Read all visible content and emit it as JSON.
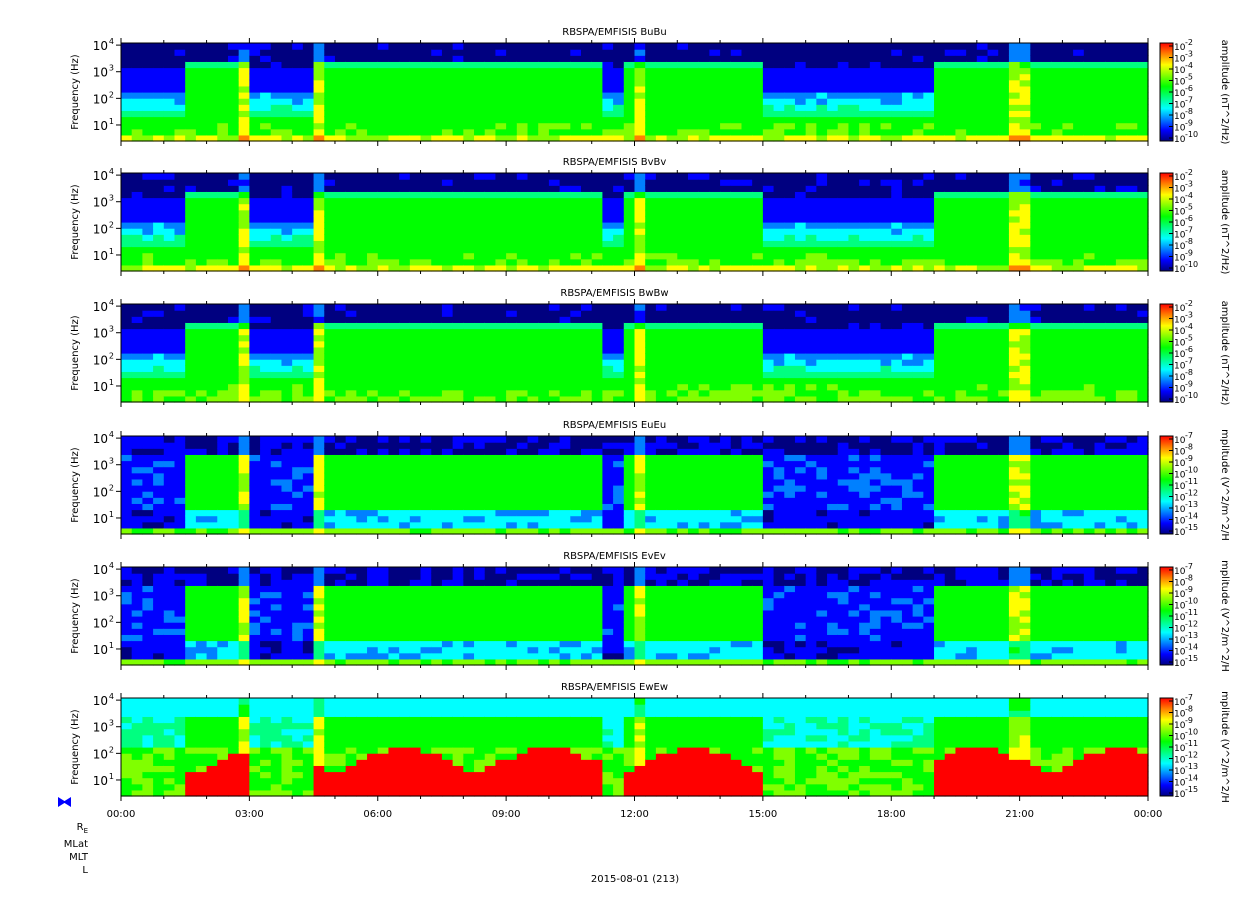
{
  "chart_data": {
    "type": "heatmap",
    "panel_count": 6,
    "x": {
      "ticks": [
        "00:00",
        "03:00",
        "06:00",
        "09:00",
        "12:00",
        "15:00",
        "18:00",
        "21:00",
        "00:00"
      ],
      "range_hours": [
        0,
        24
      ],
      "minor_step_hours": 1
    },
    "footer": "2015-08-01 (213)",
    "ephemeris_labels": [
      "R",
      "MLat",
      "MLT",
      "L"
    ],
    "ephemeris_subscript": "E",
    "panels": [
      {
        "title": "RBSPA/EMFISIS  BuBu",
        "ylabel": "Frequency (Hz)",
        "yscale": "log",
        "ylim": [
          2.5,
          12000
        ],
        "yticks": [
          {
            "base": "10",
            "exp": "4"
          },
          {
            "base": "10",
            "exp": "3"
          },
          {
            "base": "10",
            "exp": "2"
          },
          {
            "base": "10",
            "exp": "1"
          }
        ],
        "zlabel": "amplitude (nT^2/Hz)",
        "zticks": [
          "-2",
          "-3",
          "-4",
          "-5",
          "-6",
          "-7",
          "-8",
          "-9",
          "-10"
        ],
        "zrange_exp": [
          -10,
          -2
        ],
        "kind": "B"
      },
      {
        "title": "RBSPA/EMFISIS  BvBv",
        "ylabel": "Frequency (Hz)",
        "yscale": "log",
        "ylim": [
          2.5,
          12000
        ],
        "yticks": [
          {
            "base": "10",
            "exp": "4"
          },
          {
            "base": "10",
            "exp": "3"
          },
          {
            "base": "10",
            "exp": "2"
          },
          {
            "base": "10",
            "exp": "1"
          }
        ],
        "zlabel": "amplitude (nT^2/Hz)",
        "zticks": [
          "-2",
          "-3",
          "-4",
          "-5",
          "-6",
          "-7",
          "-8",
          "-9",
          "-10"
        ],
        "zrange_exp": [
          -10,
          -2
        ],
        "kind": "B"
      },
      {
        "title": "RBSPA/EMFISIS  BwBw",
        "ylabel": "Frequency (Hz)",
        "yscale": "log",
        "ylim": [
          2.5,
          12000
        ],
        "yticks": [
          {
            "base": "10",
            "exp": "4"
          },
          {
            "base": "10",
            "exp": "3"
          },
          {
            "base": "10",
            "exp": "2"
          },
          {
            "base": "10",
            "exp": "1"
          }
        ],
        "zlabel": "amplitude (nT^2/Hz)",
        "zticks": [
          "-2",
          "-3",
          "-4",
          "-5",
          "-6",
          "-7",
          "-8",
          "-9",
          "-10"
        ],
        "zrange_exp": [
          -10,
          -2
        ],
        "kind": "Bw"
      },
      {
        "title": "RBSPA/EMFISIS  EuEu",
        "ylabel": "Frequency (Hz)",
        "yscale": "log",
        "ylim": [
          2.5,
          12000
        ],
        "yticks": [
          {
            "base": "10",
            "exp": "4"
          },
          {
            "base": "10",
            "exp": "3"
          },
          {
            "base": "10",
            "exp": "2"
          },
          {
            "base": "10",
            "exp": "1"
          }
        ],
        "zlabel": "mplitude (V^2/m^2/H",
        "zticks": [
          "-7",
          "-8",
          "-9",
          "-10",
          "-11",
          "-12",
          "-13",
          "-14",
          "-15"
        ],
        "zrange_exp": [
          -15,
          -7
        ],
        "kind": "E"
      },
      {
        "title": "RBSPA/EMFISIS  EvEv",
        "ylabel": "Frequency (Hz)",
        "yscale": "log",
        "ylim": [
          2.5,
          12000
        ],
        "yticks": [
          {
            "base": "10",
            "exp": "4"
          },
          {
            "base": "10",
            "exp": "3"
          },
          {
            "base": "10",
            "exp": "2"
          },
          {
            "base": "10",
            "exp": "1"
          }
        ],
        "zlabel": "mplitude (V^2/m^2/H",
        "zticks": [
          "-7",
          "-8",
          "-9",
          "-10",
          "-11",
          "-12",
          "-13",
          "-14",
          "-15"
        ],
        "zrange_exp": [
          -15,
          -7
        ],
        "kind": "E"
      },
      {
        "title": "RBSPA/EMFISIS  EwEw",
        "ylabel": "Frequency (Hz)",
        "yscale": "log",
        "ylim": [
          2.5,
          12000
        ],
        "yticks": [
          {
            "base": "10",
            "exp": "4"
          },
          {
            "base": "10",
            "exp": "3"
          },
          {
            "base": "10",
            "exp": "2"
          },
          {
            "base": "10",
            "exp": "1"
          }
        ],
        "zlabel": "mplitude (V^2/m^2/H",
        "zticks": [
          "-7",
          "-8",
          "-9",
          "-10",
          "-11",
          "-12",
          "-13",
          "-14",
          "-15"
        ],
        "zrange_exp": [
          -15,
          -7
        ],
        "kind": "Ew"
      }
    ],
    "colormap": [
      "#000080",
      "#0000ff",
      "#0080ff",
      "#00ffff",
      "#00ff80",
      "#00ff00",
      "#80ff00",
      "#ffff00",
      "#ff8000",
      "#ff0000"
    ],
    "bright_intervals_hours": [
      [
        1.4,
        3.0
      ],
      [
        4.6,
        11.2
      ],
      [
        11.8,
        15.0
      ],
      [
        19.0,
        24.0
      ]
    ],
    "storm_hours": [
      2.9,
      4.7,
      12.1,
      21.0
    ]
  }
}
